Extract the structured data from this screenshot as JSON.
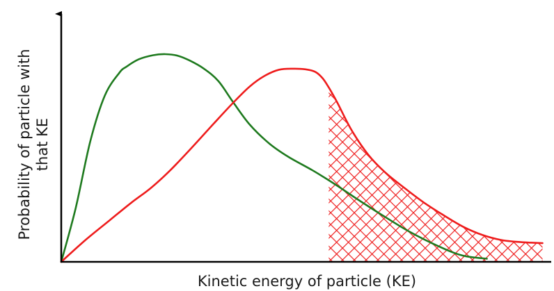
{
  "chart_data": {
    "type": "line",
    "title": "",
    "xlabel": "Kinetic energy of particle (KE)",
    "ylabel_lines": [
      "Probability of particle with",
      "that KE"
    ],
    "xlim": [
      0,
      100
    ],
    "ylim": [
      0,
      100
    ],
    "ticks": false,
    "grid": false,
    "legend": "none",
    "series": [
      {
        "color": "#1e7a1e",
        "x": [
          0,
          3,
          6,
          9,
          12,
          13.5,
          16,
          19,
          21.5,
          24,
          26.5,
          29.5,
          32.5,
          35.5,
          39,
          43,
          47,
          52,
          56.5,
          61,
          66,
          72,
          78,
          83,
          88
        ],
        "y": [
          0,
          26,
          58,
          80,
          91,
          94,
          97.5,
          99.5,
          100,
          99.3,
          97,
          93,
          87,
          77,
          66,
          57,
          50.5,
          44,
          37.5,
          30.5,
          23,
          14.5,
          7.5,
          3,
          1.5
        ]
      },
      {
        "color": "#ee1c1c",
        "x": [
          0,
          5,
          10,
          14.5,
          18.5,
          22.5,
          27,
          31.5,
          35.5,
          39,
          42,
          45,
          48,
          50.5,
          52.5,
          54,
          55.3,
          57,
          60,
          63.5,
          67,
          71,
          75,
          79,
          83,
          87,
          91,
          95,
          99.5
        ],
        "y": [
          0,
          10.5,
          20,
          28.5,
          35.5,
          44,
          55,
          66.5,
          76.5,
          84.5,
          89.5,
          92.5,
          93,
          92.7,
          91.5,
          88.5,
          84,
          77,
          63.5,
          51.5,
          43,
          35.5,
          28.5,
          22.5,
          17,
          13,
          10.5,
          9.5,
          9
        ]
      }
    ],
    "shaded_region": {
      "series_index": 1,
      "from_x": 55.3,
      "to_x": 99.5,
      "pattern": "crosshatch",
      "color": "#ee1c1c"
    }
  }
}
